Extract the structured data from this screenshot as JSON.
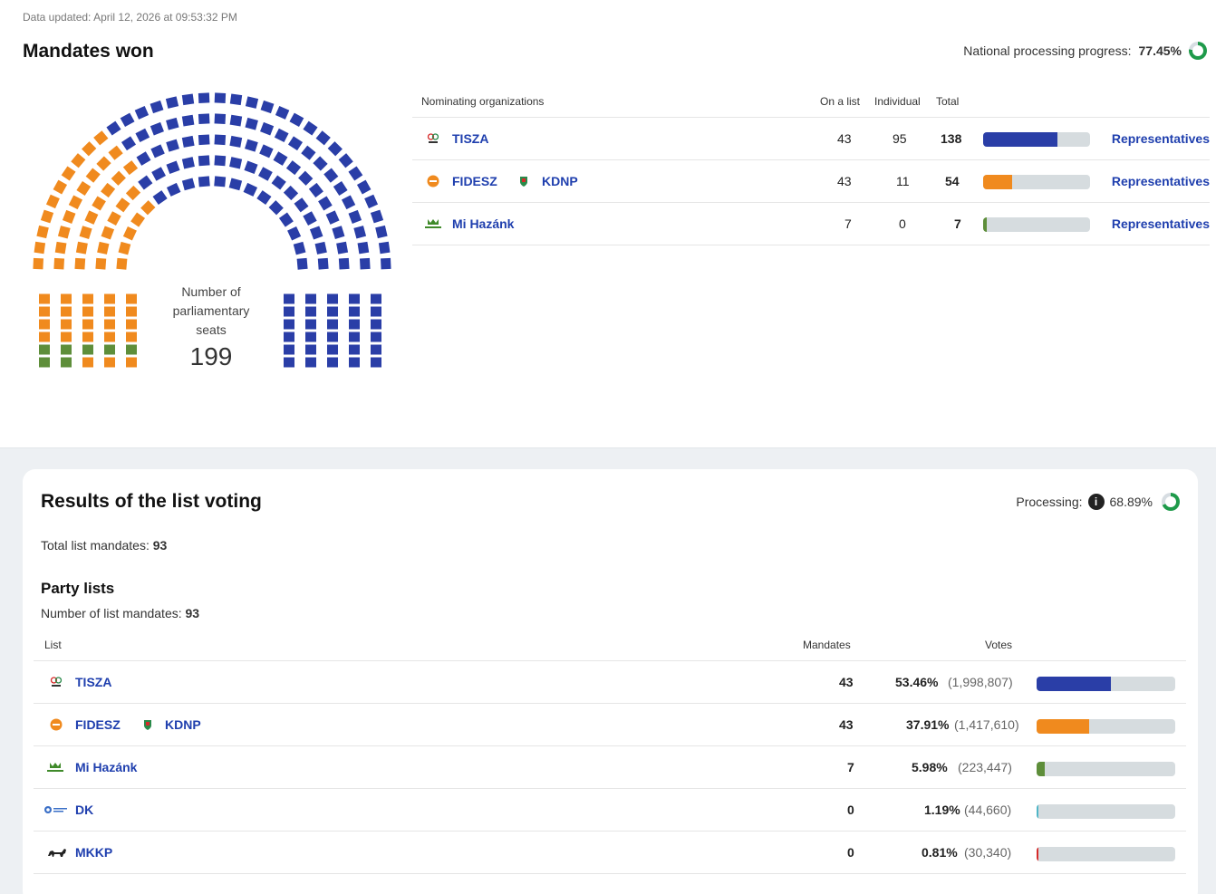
{
  "updated": "Data updated: April 12, 2026 at 09:53:32 PM",
  "mandates": {
    "title": "Mandates won",
    "progress_label": "National processing progress:",
    "progress_value": "77.45%",
    "progress_fraction": 0.7745,
    "seats_label": "Number of parliamentary seats",
    "seats_total": "199",
    "columns": {
      "org": "Nominating organizations",
      "list": "On a list",
      "individual": "Individual",
      "total": "Total"
    },
    "rows": [
      {
        "party": "TISZA",
        "party2": "",
        "list": "43",
        "individual": "95",
        "total": "138",
        "share": 0.6935,
        "color": "#2a3ea7",
        "link": "Representatives"
      },
      {
        "party": "FIDESZ",
        "party2": "KDNP",
        "list": "43",
        "individual": "11",
        "total": "54",
        "share": 0.2714,
        "color": "#f08a1e",
        "link": "Representatives"
      },
      {
        "party": "Mi Hazánk",
        "party2": "",
        "list": "7",
        "individual": "0",
        "total": "7",
        "share": 0.0352,
        "color": "#5e8e3a",
        "link": "Representatives"
      }
    ]
  },
  "list_voting": {
    "title": "Results of the list voting",
    "processing_label": "Processing:",
    "processing_value": "68.89%",
    "processing_fraction": 0.6889,
    "total_label": "Total list mandates:",
    "total_value": "93",
    "party_lists_title": "Party lists",
    "num_label": "Number of list mandates:",
    "num_value": "93",
    "columns": {
      "list": "List",
      "mandates": "Mandates",
      "votes": "Votes"
    },
    "rows": [
      {
        "party": "TISZA",
        "party2": "",
        "mandates": "43",
        "pct": "53.46%",
        "votes": "(1,998,807)",
        "share": 0.5346,
        "color": "#2a3ea7"
      },
      {
        "party": "FIDESZ",
        "party2": "KDNP",
        "mandates": "43",
        "pct": "37.91%",
        "votes": "(1,417,610)",
        "share": 0.3791,
        "color": "#f08a1e"
      },
      {
        "party": "Mi Hazánk",
        "party2": "",
        "mandates": "7",
        "pct": "5.98%",
        "votes": "(223,447)",
        "share": 0.0598,
        "color": "#5e8e3a"
      },
      {
        "party": "DK",
        "party2": "",
        "mandates": "0",
        "pct": "1.19%",
        "votes": "(44,660)",
        "share": 0.0119,
        "color": "#4fb6c7"
      },
      {
        "party": "MKKP",
        "party2": "",
        "mandates": "0",
        "pct": "0.81%",
        "votes": "(30,340)",
        "share": 0.0081,
        "color": "#d62a2a"
      }
    ]
  },
  "colors": {
    "tisza": "#2a3ea7",
    "fidesz": "#f08a1e",
    "mihazank": "#5e8e3a",
    "link": "#1f3fae",
    "ring": "#1e9a4a"
  },
  "seat_counts": {
    "tisza": 138,
    "fidesz_kdnp": 54,
    "mi_hazank": 7
  }
}
